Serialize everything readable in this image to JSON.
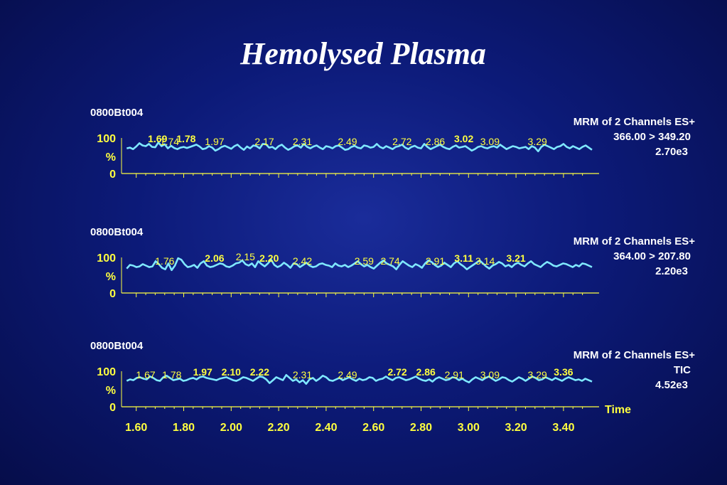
{
  "slide": {
    "title": "Hemolysed Plasma"
  },
  "colors": {
    "trace": "#7fe8ff",
    "axis": "#ffff40",
    "label": "#ffff40",
    "text": "#ffffff"
  },
  "chart_data": [
    {
      "type": "line",
      "sample": "0800Bt004",
      "description_lines": [
        "MRM of 2 Channels ES+",
        "366.00 > 349.20",
        "2.70e3"
      ],
      "y_ticks": [
        "100",
        "%",
        "0"
      ],
      "x_range": [
        1.55,
        3.55
      ],
      "y_range": [
        0,
        100
      ],
      "x_ticks": [],
      "x_label": "",
      "peak_labels": [
        {
          "text": "1.69",
          "x": 1.69,
          "bold": true
        },
        {
          "text": "1.74",
          "x": 1.74,
          "bold": false
        },
        {
          "text": "1.78",
          "x": 1.81,
          "bold": true
        },
        {
          "text": "1.97",
          "x": 1.93,
          "bold": false
        },
        {
          "text": "2.17",
          "x": 2.14,
          "bold": false
        },
        {
          "text": "2.31",
          "x": 2.3,
          "bold": false
        },
        {
          "text": "2.49",
          "x": 2.49,
          "bold": false
        },
        {
          "text": "2.72",
          "x": 2.72,
          "bold": false
        },
        {
          "text": "2.86",
          "x": 2.86,
          "bold": false
        },
        {
          "text": "3.02",
          "x": 2.98,
          "bold": true
        },
        {
          "text": "3.09",
          "x": 3.09,
          "bold": false
        },
        {
          "text": "3.29",
          "x": 3.29,
          "bold": false
        }
      ],
      "y": [
        68,
        70,
        66,
        73,
        82,
        76,
        74,
        80,
        72,
        71,
        84,
        74,
        79,
        68,
        75,
        69,
        66,
        70,
        72,
        69,
        72,
        75,
        78,
        73,
        66,
        68,
        74,
        70,
        62,
        66,
        72,
        75,
        71,
        67,
        74,
        78,
        70,
        64,
        73,
        68,
        76,
        74,
        68,
        80,
        79,
        70,
        72,
        66,
        74,
        78,
        70,
        64,
        68,
        74,
        76,
        70,
        80,
        72,
        68,
        73,
        76,
        70,
        66,
        74,
        72,
        68,
        74,
        76,
        70,
        64,
        66,
        72,
        75,
        70,
        68,
        76,
        74,
        70,
        72,
        80,
        72,
        68,
        74,
        70,
        66,
        72,
        74,
        78,
        70,
        66,
        72,
        75,
        70,
        68,
        80,
        72,
        66,
        70,
        74,
        78,
        72,
        68,
        66,
        72,
        76,
        70,
        72,
        74,
        68,
        62,
        66,
        72,
        74,
        70,
        68,
        72,
        74,
        70,
        78,
        72,
        66,
        70,
        74,
        72,
        68,
        70,
        72,
        66,
        74,
        70,
        60,
        72,
        78,
        74,
        70,
        66,
        72,
        74,
        80,
        72,
        68,
        74,
        70,
        66,
        72,
        76,
        70,
        64
      ]
    },
    {
      "type": "line",
      "sample": "0800Bt004",
      "description_lines": [
        "MRM of 2 Channels ES+",
        "364.00 > 207.80",
        "2.20e3"
      ],
      "y_ticks": [
        "100",
        "%",
        "0"
      ],
      "x_range": [
        1.55,
        3.55
      ],
      "y_range": [
        0,
        100
      ],
      "x_ticks": [],
      "x_label": "",
      "peak_labels": [
        {
          "text": "1.76",
          "x": 1.72,
          "bold": false
        },
        {
          "text": "2.06",
          "x": 1.93,
          "bold": true
        },
        {
          "text": "2.15",
          "x": 2.06,
          "bold": false
        },
        {
          "text": "2.20",
          "x": 2.16,
          "bold": true
        },
        {
          "text": "2.42",
          "x": 2.3,
          "bold": false
        },
        {
          "text": "2.59",
          "x": 2.56,
          "bold": false
        },
        {
          "text": "2.74",
          "x": 2.67,
          "bold": false
        },
        {
          "text": "2.91",
          "x": 2.86,
          "bold": false
        },
        {
          "text": "3.11",
          "x": 2.98,
          "bold": true
        },
        {
          "text": "3.14",
          "x": 3.07,
          "bold": false
        },
        {
          "text": "3.21",
          "x": 3.2,
          "bold": true
        }
      ],
      "y": [
        66,
        76,
        74,
        70,
        72,
        78,
        74,
        70,
        72,
        86,
        78,
        68,
        64,
        80,
        62,
        74,
        94,
        90,
        78,
        70,
        72,
        76,
        68,
        80,
        86,
        74,
        70,
        72,
        76,
        80,
        78,
        72,
        70,
        74,
        80,
        82,
        88,
        78,
        74,
        80,
        70,
        86,
        78,
        72,
        80,
        90,
        76,
        70,
        74,
        82,
        76,
        68,
        80,
        78,
        70,
        76,
        82,
        74,
        70,
        72,
        78,
        80,
        76,
        74,
        70,
        80,
        74,
        72,
        76,
        70,
        74,
        80,
        86,
        78,
        72,
        76,
        70,
        66,
        74,
        82,
        88,
        80,
        76,
        72,
        64,
        76,
        86,
        80,
        74,
        70,
        78,
        74,
        68,
        80,
        88,
        84,
        76,
        70,
        74,
        82,
        76,
        70,
        80,
        86,
        78,
        72,
        64,
        70,
        76,
        82,
        88,
        80,
        72,
        66,
        74,
        78,
        84,
        80,
        72,
        76,
        70,
        78,
        82,
        76,
        72,
        80,
        86,
        78,
        74,
        70,
        78,
        84,
        80,
        74,
        72,
        76,
        80,
        78,
        74,
        70,
        76,
        72,
        80,
        78,
        74,
        70
      ]
    },
    {
      "type": "line",
      "sample": "0800Bt004",
      "description_lines": [
        "MRM of 2 Channels ES+",
        "TIC",
        "4.52e3"
      ],
      "y_ticks": [
        "100",
        "%",
        "0"
      ],
      "x_range": [
        1.55,
        3.55
      ],
      "y_range": [
        0,
        100
      ],
      "x_ticks": [
        "1.60",
        "1.80",
        "2.00",
        "2.20",
        "2.40",
        "2.60",
        "2.80",
        "3.00",
        "3.20",
        "3.40"
      ],
      "x_tick_values": [
        1.6,
        1.8,
        2.0,
        2.2,
        2.4,
        2.6,
        2.8,
        3.0,
        3.2,
        3.4
      ],
      "x_label": "Time",
      "peak_labels": [
        {
          "text": "1.67",
          "x": 1.64,
          "bold": false
        },
        {
          "text": "1.78",
          "x": 1.75,
          "bold": false
        },
        {
          "text": "1.97",
          "x": 1.88,
          "bold": true
        },
        {
          "text": "2.10",
          "x": 2.0,
          "bold": true
        },
        {
          "text": "2.22",
          "x": 2.12,
          "bold": true
        },
        {
          "text": "2.31",
          "x": 2.3,
          "bold": false
        },
        {
          "text": "2.49",
          "x": 2.49,
          "bold": false
        },
        {
          "text": "2.72",
          "x": 2.7,
          "bold": true
        },
        {
          "text": "2.86",
          "x": 2.82,
          "bold": true
        },
        {
          "text": "2.91",
          "x": 2.94,
          "bold": false
        },
        {
          "text": "3.09",
          "x": 3.09,
          "bold": false
        },
        {
          "text": "3.29",
          "x": 3.29,
          "bold": false
        },
        {
          "text": "3.36",
          "x": 3.4,
          "bold": true
        }
      ],
      "y": [
        70,
        74,
        72,
        78,
        80,
        76,
        74,
        82,
        78,
        72,
        70,
        80,
        84,
        78,
        72,
        74,
        76,
        70,
        72,
        76,
        78,
        74,
        80,
        82,
        78,
        76,
        74,
        72,
        76,
        78,
        80,
        76,
        72,
        70,
        74,
        80,
        78,
        74,
        70,
        76,
        82,
        80,
        74,
        64,
        72,
        80,
        76,
        72,
        86,
        78,
        70,
        74,
        66,
        72,
        62,
        74,
        78,
        70,
        76,
        84,
        80,
        72,
        70,
        74,
        78,
        72,
        76,
        80,
        74,
        70,
        76,
        72,
        74,
        80,
        78,
        70,
        74,
        76,
        82,
        76,
        72,
        78,
        80,
        76,
        72,
        74,
        78,
        82,
        76,
        72,
        70,
        74,
        68,
        76,
        80,
        76,
        72,
        74,
        80,
        78,
        72,
        76,
        70,
        66,
        74,
        80,
        76,
        72,
        78,
        82,
        76,
        70,
        74,
        80,
        78,
        72,
        68,
        74,
        80,
        76,
        70,
        76,
        82,
        78,
        72,
        74,
        80,
        76,
        72,
        78,
        74,
        70,
        76,
        80,
        76,
        72,
        74,
        70,
        76,
        72,
        68
      ]
    }
  ]
}
